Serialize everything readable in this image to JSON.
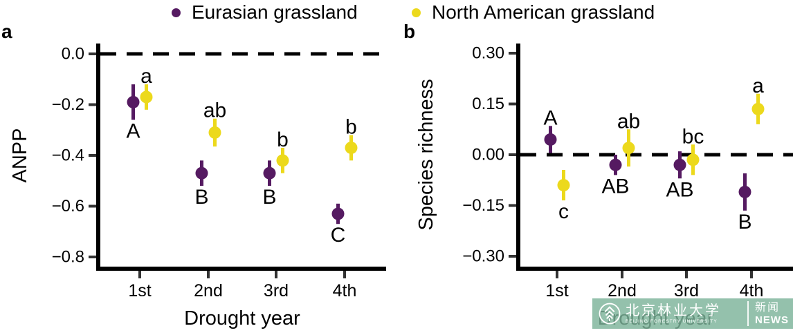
{
  "legend": {
    "items": [
      {
        "label": "Eurasian grassland",
        "color": "#551a61"
      },
      {
        "label": "North American grassland",
        "color": "#ecd91c"
      }
    ]
  },
  "chart_data": [
    {
      "type": "scatter",
      "subtype": "pointrange",
      "panel": "a",
      "xlabel": "Drought year",
      "ylabel": "ANPP",
      "categories": [
        "1st",
        "2nd",
        "3rd",
        "4th"
      ],
      "ylim": [
        -0.85,
        0.05
      ],
      "ytick_values": [
        0.0,
        -0.2,
        -0.4,
        -0.6,
        -0.8
      ],
      "ytick_labels": [
        "0.0",
        "−0.2",
        "−0.4",
        "−0.6",
        "−0.8"
      ],
      "reference_line_y": 0,
      "grid": false,
      "legend_position": "top",
      "series": [
        {
          "name": "Eurasian grassland",
          "color": "#551a61",
          "values": [
            -0.19,
            -0.47,
            -0.47,
            -0.63
          ],
          "errors": [
            0.07,
            0.05,
            0.05,
            0.04
          ],
          "sig_letters": [
            "A",
            "B",
            "B",
            "C"
          ],
          "letter_side": [
            "below",
            "below",
            "below",
            "below"
          ]
        },
        {
          "name": "North American grassland",
          "color": "#ecd91c",
          "values": [
            -0.17,
            -0.31,
            -0.42,
            -0.37
          ],
          "errors": [
            0.05,
            0.055,
            0.05,
            0.05
          ],
          "sig_letters": [
            "a",
            "ab",
            "b",
            "b"
          ],
          "letter_side": [
            "above",
            "above",
            "above",
            "above"
          ]
        }
      ]
    },
    {
      "type": "scatter",
      "subtype": "pointrange",
      "panel": "b",
      "xlabel": "Drought year",
      "ylabel": "Species richness",
      "categories": [
        "1st",
        "2nd",
        "3rd",
        "4th"
      ],
      "ylim": [
        -0.33,
        0.33
      ],
      "ytick_values": [
        0.3,
        0.15,
        0.0,
        -0.15,
        -0.3
      ],
      "ytick_labels": [
        "0.30",
        "0.15",
        "0.00",
        "−0.15",
        "−0.30"
      ],
      "reference_line_y": 0,
      "grid": false,
      "legend_position": "top",
      "series": [
        {
          "name": "Eurasian grassland",
          "color": "#551a61",
          "values": [
            0.045,
            -0.03,
            -0.03,
            -0.11
          ],
          "errors": [
            0.04,
            0.03,
            0.04,
            0.055
          ],
          "sig_letters": [
            "A",
            "AB",
            "AB",
            "B"
          ],
          "letter_side": [
            "above",
            "below",
            "below",
            "below"
          ]
        },
        {
          "name": "North American grassland",
          "color": "#ecd91c",
          "values": [
            -0.09,
            0.02,
            -0.015,
            0.135
          ],
          "errors": [
            0.045,
            0.055,
            0.045,
            0.045
          ],
          "sig_letters": [
            "c",
            "ab",
            "bc",
            "a"
          ],
          "letter_side": [
            "below",
            "above",
            "above",
            "above"
          ]
        }
      ]
    }
  ],
  "watermark": {
    "university_zh": "北京林业大学",
    "university_en": "BEIJING FORESTRY UNIVERSITY",
    "news_zh": "新闻",
    "news_en": "NEWS",
    "bg_color": "#7db39a"
  }
}
